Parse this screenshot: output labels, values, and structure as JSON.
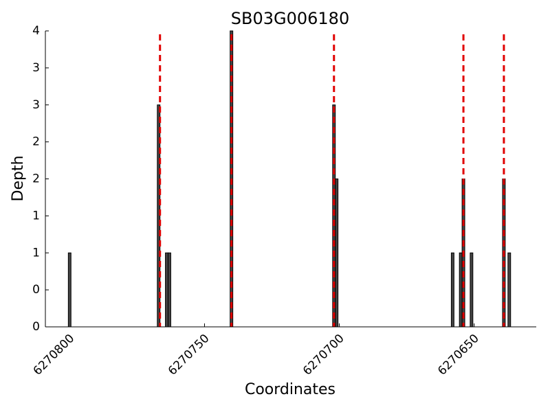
{
  "chart_data": {
    "type": "bar",
    "title": "SB03G006180",
    "xlabel": "Coordinates",
    "ylabel": "Depth",
    "x": [
      6270800,
      6270767,
      6270764,
      6270763,
      6270740,
      6270702,
      6270701,
      6270658,
      6270655,
      6270654,
      6270651,
      6270639,
      6270637
    ],
    "values": [
      1,
      3,
      1,
      1,
      4,
      3,
      2,
      1,
      1,
      2,
      1,
      2,
      1
    ],
    "color": "#444444",
    "vlines": [
      6270766.5,
      6270740,
      6270702,
      6270654,
      6270639
    ],
    "vline_color": "#e00000",
    "xlim": [
      6270809,
      6270627
    ],
    "xticks": [
      6270800,
      6270750,
      6270700,
      6270650
    ],
    "ylim": [
      0,
      4
    ],
    "yticks": [
      0,
      {
        "value": 0.5,
        "label": "0"
      },
      1,
      {
        "value": 1.5,
        "label": "1"
      },
      2,
      {
        "value": 2.5,
        "label": "2"
      },
      3,
      {
        "value": 3.5,
        "label": "3"
      },
      4
    ]
  }
}
